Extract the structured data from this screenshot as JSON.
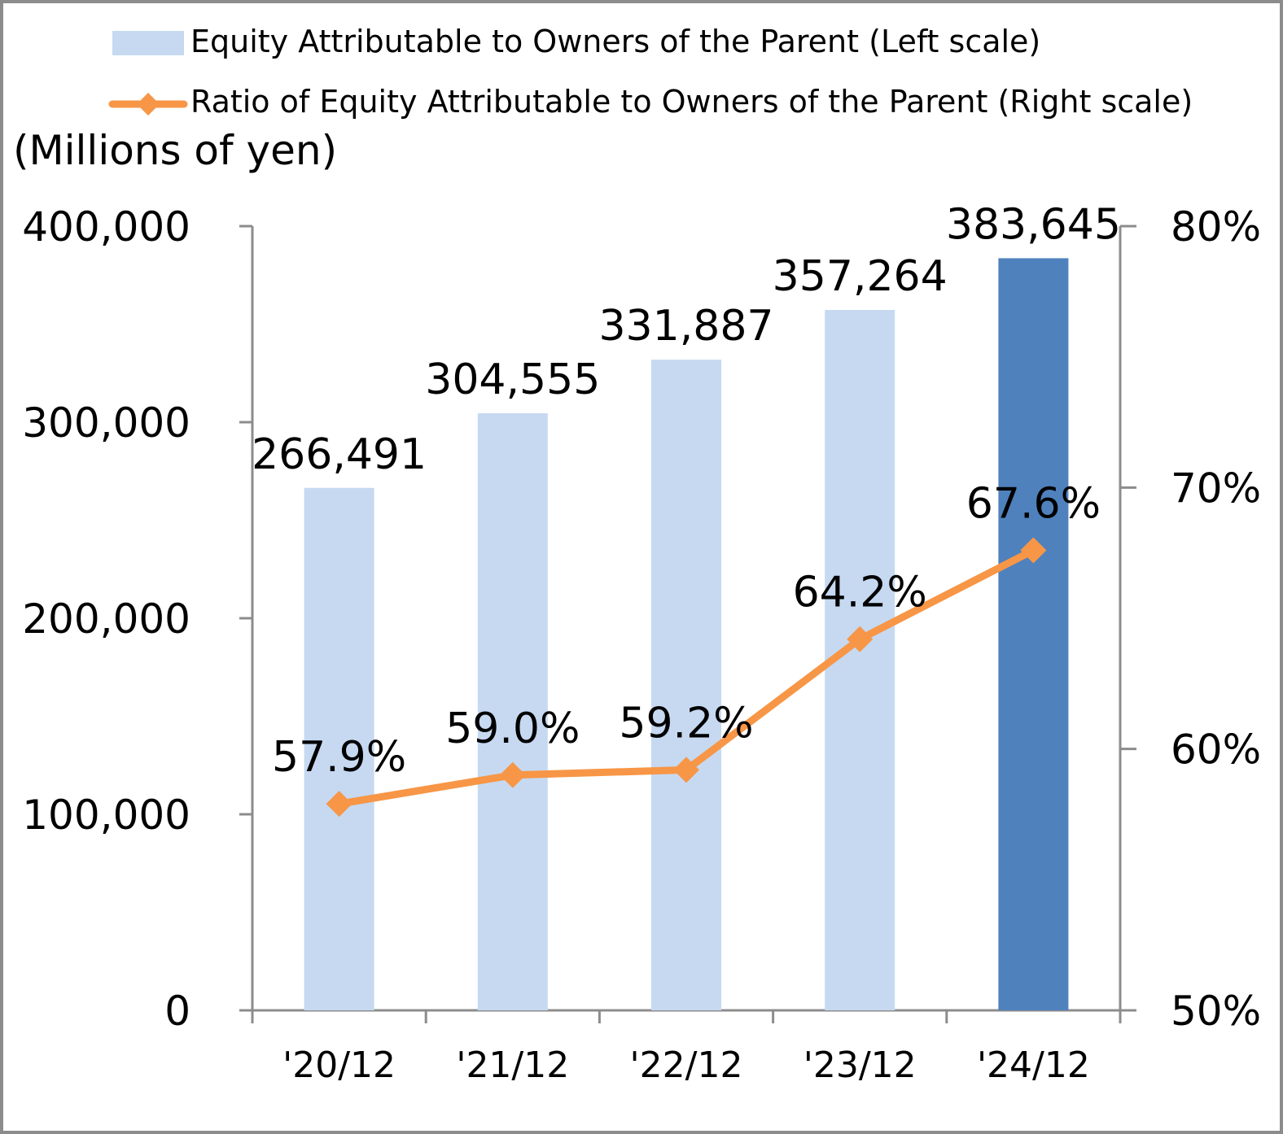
{
  "chart_data": {
    "type": "bar",
    "unit_label": "(Millions of yen)",
    "categories": [
      "'20/12",
      "'21/12",
      "'22/12",
      "'23/12",
      "'24/12"
    ],
    "series": [
      {
        "name": "Equity Attributable to Owners of the Parent (Left scale)",
        "type": "bar",
        "axis": "left",
        "values": [
          266491,
          304555,
          331887,
          357264,
          383645
        ],
        "labels": [
          "266,491",
          "304,555",
          "331,887",
          "357,264",
          "383,645"
        ],
        "color": "#c6d9f1",
        "highlight_color": "#4f81bd",
        "highlight_index": 4
      },
      {
        "name": "Ratio of Equity Attributable to Owners of the Parent (Right scale)",
        "type": "line",
        "axis": "right",
        "values": [
          57.9,
          59.0,
          59.2,
          64.2,
          67.6
        ],
        "labels": [
          "57.9%",
          "59.0%",
          "59.2%",
          "64.2%",
          "67.6%"
        ],
        "color": "#f79646",
        "marker": "diamond"
      }
    ],
    "y_left": {
      "min": 0,
      "max": 400000,
      "ticks": [
        "0",
        "100,000",
        "200,000",
        "300,000",
        "400,000"
      ]
    },
    "y_right": {
      "min": 50,
      "max": 80,
      "ticks": [
        "50%",
        "60%",
        "70%",
        "80%"
      ]
    },
    "legend_position": "top",
    "grid": false
  }
}
